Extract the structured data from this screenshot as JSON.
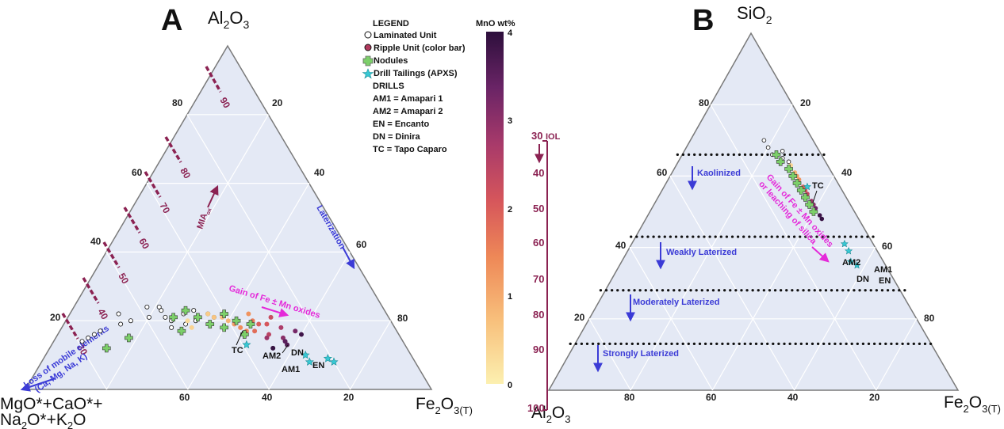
{
  "colors": {
    "triangle_fill": "#e4e9f5",
    "triangle_stroke": "#7a7a7a",
    "grid": "#ffffff",
    "mia_dash": "#8b2252",
    "arrow_blue": "#3b3bd6",
    "magenta": "#e42ad9",
    "iol_axis": "#8b2252",
    "tailings_cyan": "#38c8d4",
    "nodule_green": "#7ccf6a",
    "colorbar_stops": [
      "#fcf0b0",
      "#f8c07c",
      "#ee8857",
      "#d6565b",
      "#a83a6a",
      "#6a2466",
      "#2d0f3c"
    ]
  },
  "panel_a": {
    "label": "A",
    "apex_top_main": "Al",
    "apex_top_sub1": "2",
    "apex_top_mid": "O",
    "apex_top_sub2": "3",
    "apex_left_line1": "MgO*+CaO*+",
    "apex_left_line2_a": "Na",
    "apex_left_line2_sub1": "2",
    "apex_left_line2_b": "O*+K",
    "apex_left_line2_sub2": "2",
    "apex_left_line2_c": "O",
    "apex_right_main": "Fe",
    "apex_right_sub1": "2",
    "apex_right_mid": "O",
    "apex_right_sub2": "3(T)",
    "ticks_left_edge": [
      "80",
      "60",
      "40",
      "20"
    ],
    "ticks_right_edge": [
      "20",
      "40",
      "60",
      "80"
    ],
    "ticks_bottom_edge": [
      "60",
      "40",
      "20"
    ],
    "mia_ticks": [
      "90",
      "80",
      "70",
      "60",
      "50",
      "40",
      "30"
    ],
    "mia_label": "MIA",
    "mia_sub": "ox",
    "laterization_label": "Laterization",
    "gain_label": "Gain of Fe ± Mn oxides",
    "loss_line1": "Loss of mobile elements",
    "loss_line2": "(Ca, Mg, Na, K)",
    "drills": {
      "tc": "TC",
      "am2": "AM2",
      "dn": "DN",
      "am1": "AM1",
      "en": "EN"
    }
  },
  "legend": {
    "title": "LEGEND",
    "items": [
      {
        "label": "Laminated Unit",
        "symbol": "open-circle"
      },
      {
        "label": "Ripple Unit (color bar)",
        "symbol": "filled-circle"
      },
      {
        "label": "Nodules",
        "symbol": "green-cross"
      },
      {
        "label": "Drill Tailings (APXS)",
        "symbol": "star"
      }
    ],
    "drills_title": "DRILLS",
    "drills": [
      "AM1 = Amapari 1",
      "AM2 = Amapari 2",
      "EN = Encanto",
      "DN = Dinira",
      "TC = Tapo Caparo"
    ]
  },
  "colorbar": {
    "title": "MnO wt%",
    "ticks": [
      "4",
      "3",
      "2",
      "1",
      "0"
    ]
  },
  "panel_b": {
    "label": "B",
    "apex_top_main": "SiO",
    "apex_top_sub": "2",
    "apex_left_main": "Al",
    "apex_left_sub1": "2",
    "apex_left_mid": "O",
    "apex_left_sub2": "3",
    "apex_right_main": "Fe",
    "apex_right_sub1": "2",
    "apex_right_mid": "O",
    "apex_right_sub2": "3(T)",
    "ticks_left_edge": [
      "80",
      "60",
      "40",
      "20"
    ],
    "ticks_right_edge": [
      "20",
      "40",
      "60",
      "80"
    ],
    "ticks_bottom_edge": [
      "80",
      "60",
      "40",
      "20"
    ],
    "iol_label": "IOL",
    "iol_ticks": [
      "30",
      "40",
      "50",
      "60",
      "70",
      "80",
      "90",
      "100"
    ],
    "zones": [
      "Kaolinized",
      "Weakly Laterized",
      "Moderately Laterized",
      "Strongly Laterized"
    ],
    "gain_line1": "Gain of Fe ± Mn oxides",
    "gain_line2": "or leaching of silica",
    "drills": {
      "tc": "TC",
      "am2": "AM2",
      "am1": "AM1",
      "dn": "DN",
      "en": "EN"
    }
  },
  "chart_data": [
    {
      "type": "scatter",
      "subtype": "ternary",
      "title": "A",
      "apices": [
        "Al2O3",
        "MgO*+CaO*+Na2O*+K2O",
        "Fe2O3(T)"
      ],
      "grid_step": 20,
      "colorbar": {
        "variable": "MnO wt%",
        "range": [
          0,
          4
        ]
      },
      "series": [
        {
          "name": "Laminated Unit",
          "points_al_fe": [
            [
              22,
              12
            ],
            [
              20,
              16
            ],
            [
              24,
              18
            ],
            [
              21,
              20
            ],
            [
              19,
              14
            ],
            [
              23,
              22
            ],
            [
              17,
              10
            ],
            [
              15,
              8
            ],
            [
              14,
              7
            ],
            [
              16,
              9
            ],
            [
              21,
              24
            ],
            [
              20,
              26
            ],
            [
              24,
              21
            ],
            [
              22,
              28
            ],
            [
              19,
              30
            ],
            [
              20,
              32
            ],
            [
              18,
              27
            ],
            [
              23,
              30
            ],
            [
              22,
              34
            ],
            [
              21,
              36
            ]
          ]
        },
        {
          "name": "Ripple Unit (color bar)",
          "points_al_fe_mno": [
            [
              22,
              34,
              0.5
            ],
            [
              21,
              36,
              0.6
            ],
            [
              20,
              40,
              0.8
            ],
            [
              19,
              42,
              1.1
            ],
            [
              21,
              38,
              0.7
            ],
            [
              18,
              44,
              1.3
            ],
            [
              20,
              46,
              1.5
            ],
            [
              17,
              48,
              1.7
            ],
            [
              19,
              50,
              2.0
            ],
            [
              16,
              52,
              2.4
            ],
            [
              18,
              54,
              2.6
            ],
            [
              15,
              56,
              3.0
            ],
            [
              17,
              58,
              3.2
            ],
            [
              14,
              57,
              3.5
            ],
            [
              16,
              60,
              3.8
            ],
            [
              20,
              30,
              0.3
            ],
            [
              23,
              28,
              0.2
            ],
            [
              18,
              32,
              0.4
            ],
            [
              22,
              44,
              1.2
            ],
            [
              19,
              48,
              1.9
            ],
            [
              21,
              50,
              2.2
            ],
            [
              17,
              46,
              1.4
            ],
            [
              15,
              52,
              2.8
            ],
            [
              13,
              58,
              3.6
            ],
            [
              12,
              55,
              3.9
            ]
          ]
        },
        {
          "name": "Nodules",
          "points_al_fe": [
            [
              23,
              28
            ],
            [
              21,
              32
            ],
            [
              19,
              36
            ],
            [
              22,
              38
            ],
            [
              20,
              42
            ],
            [
              18,
              40
            ],
            [
              16,
              46
            ],
            [
              19,
              46
            ],
            [
              21,
              26
            ],
            [
              17,
              30
            ],
            [
              15,
              18
            ],
            [
              12,
              14
            ]
          ]
        },
        {
          "name": "Drill Tailings (APXS)",
          "points_al_fe": [
            [
              8,
              72
            ],
            [
              9,
              70
            ],
            [
              8,
              66
            ],
            [
              10,
              64
            ],
            [
              13,
              48
            ]
          ]
        }
      ],
      "annotations": [
        "MIAox contours 30–90",
        "Laterization",
        "Gain of Fe ± Mn oxides",
        "Loss of mobile elements (Ca, Mg, Na, K)"
      ]
    },
    {
      "type": "scatter",
      "subtype": "ternary",
      "title": "B",
      "apices": [
        "SiO2",
        "Al2O3",
        "Fe2O3(T)"
      ],
      "grid_step": 20,
      "iol_axis": {
        "label": "IOL",
        "range": [
          30,
          100
        ]
      },
      "zone_boundaries_sio2": [
        66,
        43,
        28,
        13
      ],
      "zones": [
        "Kaolinized",
        "Weakly Laterized",
        "Moderately Laterized",
        "Strongly Laterized"
      ],
      "series": [
        {
          "name": "Laminated Unit",
          "points_si_fe": [
            [
              70,
              18
            ],
            [
              68,
              20
            ],
            [
              66,
              22
            ],
            [
              67,
              24
            ],
            [
              65,
              25
            ],
            [
              64,
              27
            ]
          ]
        },
        {
          "name": "Ripple Unit (color bar)",
          "points_si_fe_mno": [
            [
              63,
              28,
              0.4
            ],
            [
              61,
              30,
              0.8
            ],
            [
              59,
              32,
              1.2
            ],
            [
              57,
              34,
              1.8
            ],
            [
              55,
              36,
              2.3
            ],
            [
              53,
              38,
              2.8
            ],
            [
              51,
              40,
              3.3
            ],
            [
              49,
              42,
              3.8
            ],
            [
              60,
              31,
              1.0
            ],
            [
              56,
              35,
              2.0
            ],
            [
              52,
              39,
              3.0
            ],
            [
              48,
              43,
              3.9
            ]
          ]
        },
        {
          "name": "Nodules",
          "points_si_fe": [
            [
              66,
              23
            ],
            [
              64,
              25
            ],
            [
              62,
              28
            ],
            [
              60,
              30
            ],
            [
              58,
              32
            ],
            [
              56,
              34
            ],
            [
              54,
              36
            ],
            [
              52,
              38
            ],
            [
              50,
              40
            ]
          ]
        },
        {
          "name": "Drill Tailings (APXS)",
          "points_si_fe": [
            [
              41,
              52
            ],
            [
              39,
              54
            ],
            [
              36,
              56
            ],
            [
              35,
              58
            ],
            [
              57,
              35
            ]
          ]
        }
      ],
      "annotations": [
        "Gain of Fe ± Mn oxides or leaching of silica"
      ]
    }
  ]
}
